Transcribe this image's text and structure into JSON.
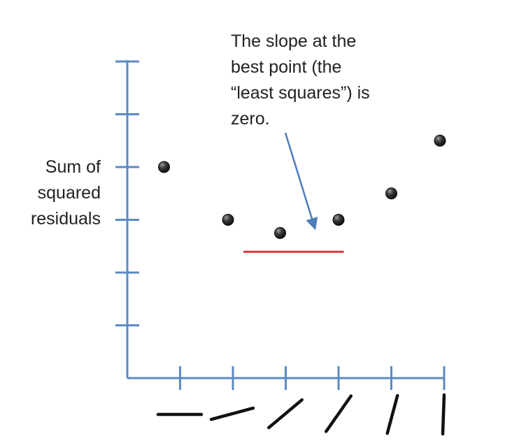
{
  "annotation": {
    "lines": [
      "The slope at the",
      "best point (the",
      "“least squares”) is",
      "zero."
    ]
  },
  "y_axis_label": {
    "lines": [
      "Sum of",
      "squared",
      "residuals"
    ]
  },
  "colors": {
    "axis": "#5b8ac5",
    "arrow": "#4d7cb8",
    "tangent_line": "#e0363a",
    "points": "#2a2a2a",
    "slope_glyphs": "#111111"
  },
  "chart_data": {
    "type": "scatter",
    "title": "",
    "xlabel": "",
    "ylabel": "Sum of squared residuals",
    "x": [
      1,
      2,
      3,
      4,
      5,
      6
    ],
    "y": [
      4.0,
      3.0,
      2.75,
      3.0,
      3.5,
      4.5
    ],
    "xlim": [
      0,
      6
    ],
    "ylim": [
      0,
      6
    ],
    "x_tick_values": [
      1,
      2,
      3,
      4,
      5,
      6
    ],
    "y_tick_values": [
      1,
      2,
      3,
      4,
      5,
      6
    ],
    "x_tick_glyph_angles_deg": [
      0,
      15,
      40,
      55,
      75,
      88
    ],
    "tangent_line": {
      "x_start": 2.2,
      "x_end": 4.1,
      "y": 2.5
    },
    "grid": false,
    "legend": "none"
  }
}
